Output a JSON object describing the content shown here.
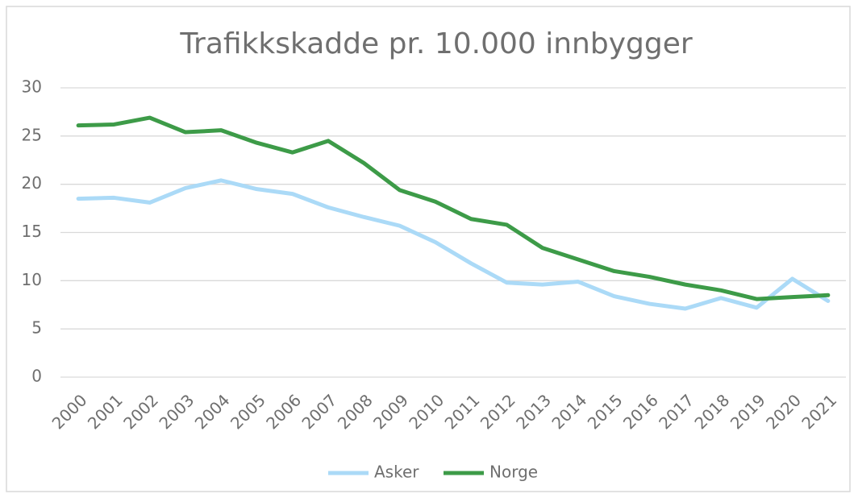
{
  "chart_data": {
    "type": "line",
    "title": "Trafikkskadde pr. 10.000 innbygger",
    "categories": [
      "2000",
      "2001",
      "2002",
      "2003",
      "2004",
      "2005",
      "2006",
      "2007",
      "2008",
      "2009",
      "2010",
      "2011",
      "2012",
      "2013",
      "2014",
      "2015",
      "2016",
      "2017",
      "2018",
      "2019",
      "2020",
      "2021"
    ],
    "series": [
      {
        "name": "Asker",
        "color": "#abdaf7",
        "values": [
          18.5,
          18.6,
          18.1,
          19.6,
          20.4,
          19.5,
          19.0,
          17.6,
          16.6,
          15.7,
          14.0,
          11.8,
          9.8,
          9.6,
          9.9,
          8.4,
          7.6,
          7.1,
          8.2,
          7.2,
          10.2,
          7.9
        ]
      },
      {
        "name": "Norge",
        "color": "#3d9b48",
        "values": [
          26.1,
          26.2,
          26.9,
          25.4,
          25.6,
          24.3,
          23.3,
          24.5,
          22.2,
          19.4,
          18.2,
          16.4,
          15.8,
          13.4,
          12.2,
          11.0,
          10.4,
          9.6,
          9.0,
          8.1,
          8.3,
          8.5
        ]
      }
    ],
    "ylim": [
      0,
      30
    ],
    "yticks": [
      0,
      5,
      10,
      15,
      20,
      25,
      30
    ],
    "grid": true,
    "legend": "bottom"
  }
}
